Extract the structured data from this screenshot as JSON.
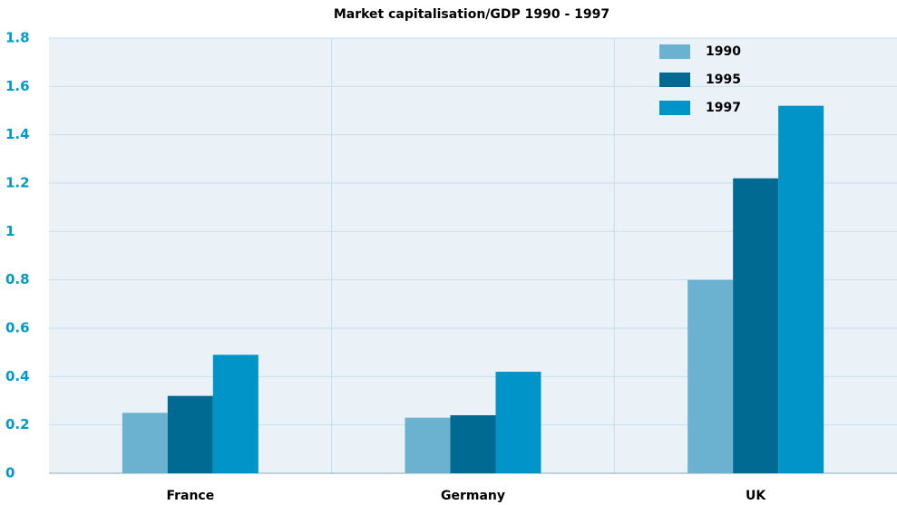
{
  "chart_data": {
    "type": "bar",
    "title": "Market capitalisation/GDP 1990 - 1997",
    "categories": [
      "France",
      "Germany",
      "UK"
    ],
    "series": [
      {
        "name": "1990",
        "color": "#6ab2d0",
        "values": [
          0.25,
          0.23,
          0.8
        ]
      },
      {
        "name": "1995",
        "color": "#006a93",
        "values": [
          0.32,
          0.24,
          1.22
        ]
      },
      {
        "name": "1997",
        "color": "#0094c8",
        "values": [
          0.49,
          0.42,
          1.52
        ]
      }
    ],
    "ylim": [
      0,
      1.8
    ],
    "yticks": [
      0,
      0.2,
      0.4,
      0.6,
      0.8,
      1,
      1.2,
      1.4,
      1.6,
      1.8
    ],
    "grid": true,
    "legend": "upper right"
  }
}
